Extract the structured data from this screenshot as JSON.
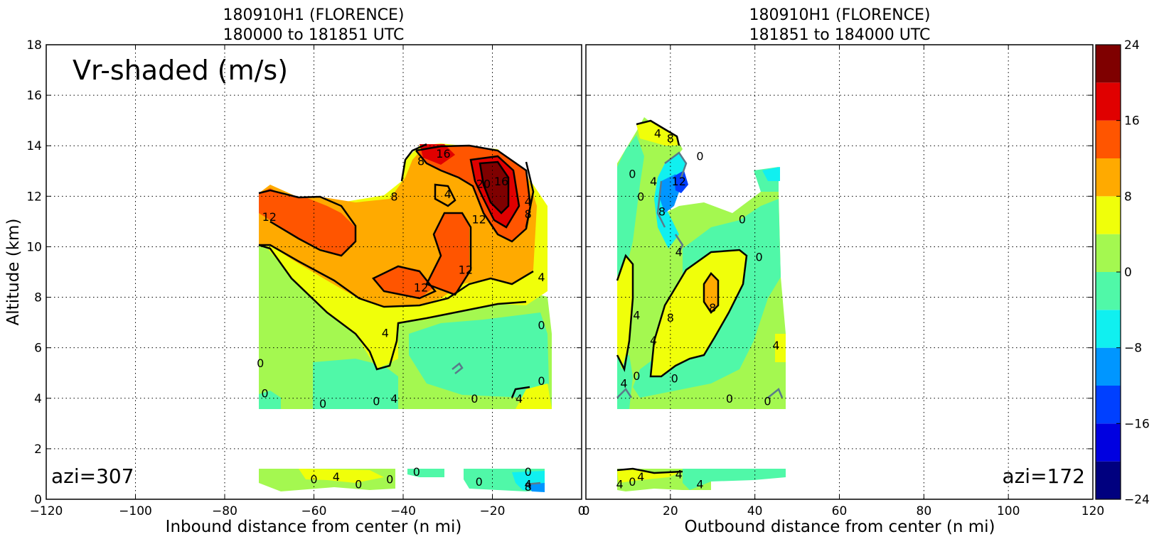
{
  "chart_data": [
    {
      "type": "heatmap",
      "panel": "left",
      "title_line1": "180910H1 (FLORENCE)",
      "title_line2": "180000 to 181851 UTC",
      "main_label": "Vr-shaded (m/s)",
      "azimuth_label": "azi=307",
      "xlabel": "Inbound distance from center (n mi)",
      "ylabel": "Altitude (km)",
      "xlim": [
        -120,
        0
      ],
      "ylim": [
        0,
        18
      ],
      "xticks": [
        "−120",
        "−100",
        "−80",
        "−60",
        "−40",
        "−20",
        "0"
      ],
      "yticks": [
        "0",
        "2",
        "4",
        "6",
        "8",
        "10",
        "12",
        "14",
        "16",
        "18"
      ],
      "grid": true,
      "contour_labels": [
        {
          "text": "12",
          "x": -70,
          "y": 11.2
        },
        {
          "text": "12",
          "x": -36,
          "y": 8.4
        },
        {
          "text": "12",
          "x": -26,
          "y": 9.1
        },
        {
          "text": "12",
          "x": -23,
          "y": 11.1
        },
        {
          "text": "16",
          "x": -31,
          "y": 13.7
        },
        {
          "text": "16",
          "x": -18,
          "y": 12.6
        },
        {
          "text": "20",
          "x": -22,
          "y": 12.5
        },
        {
          "text": "8",
          "x": -42,
          "y": 12.0
        },
        {
          "text": "8",
          "x": -36,
          "y": 13.4
        },
        {
          "text": "8",
          "x": -12,
          "y": 11.3
        },
        {
          "text": "4",
          "x": -30,
          "y": 12.1
        },
        {
          "text": "4",
          "x": -12,
          "y": 11.8
        },
        {
          "text": "4",
          "x": -9,
          "y": 8.8
        },
        {
          "text": "4",
          "x": -44,
          "y": 6.6
        },
        {
          "text": "4",
          "x": -42,
          "y": 4.0
        },
        {
          "text": "4",
          "x": -14,
          "y": 4.0
        },
        {
          "text": "4",
          "x": -55,
          "y": 0.9
        },
        {
          "text": "0",
          "x": -9,
          "y": 6.9
        },
        {
          "text": "0",
          "x": -9,
          "y": 4.7
        },
        {
          "text": "0",
          "x": -24,
          "y": 4.0
        },
        {
          "text": "0",
          "x": -46,
          "y": 3.9
        },
        {
          "text": "0",
          "x": -58,
          "y": 3.8
        },
        {
          "text": "0",
          "x": -72,
          "y": 5.4
        },
        {
          "text": "0",
          "x": -71,
          "y": 4.2
        },
        {
          "text": "0",
          "x": -60,
          "y": 0.8
        },
        {
          "text": "0",
          "x": -50,
          "y": 0.6
        },
        {
          "text": "0",
          "x": -43,
          "y": 0.8
        },
        {
          "text": "0",
          "x": -37,
          "y": 1.1
        },
        {
          "text": "0",
          "x": -23,
          "y": 0.7
        },
        {
          "text": "0",
          "x": -12,
          "y": 1.1
        },
        {
          "text": "8",
          "x": -12,
          "y": 0.5
        },
        {
          "text": "4",
          "x": -12,
          "y": 0.6
        }
      ]
    },
    {
      "type": "heatmap",
      "panel": "right",
      "title_line1": "180910H1 (FLORENCE)",
      "title_line2": "181851 to 184000 UTC",
      "azimuth_label": "azi=172",
      "xlabel": "Outbound distance from center (n mi)",
      "xlim": [
        0,
        120
      ],
      "ylim": [
        0,
        18
      ],
      "xticks": [
        "0",
        "20",
        "40",
        "60",
        "80",
        "100",
        "120"
      ],
      "grid": true,
      "contour_labels": [
        {
          "text": "4",
          "x": 17,
          "y": 14.5
        },
        {
          "text": "8",
          "x": 20,
          "y": 14.3
        },
        {
          "text": "0",
          "x": 27,
          "y": 13.6
        },
        {
          "text": "0",
          "x": 11,
          "y": 12.9
        },
        {
          "text": "4",
          "x": 16,
          "y": 12.6
        },
        {
          "text": "12",
          "x": 22,
          "y": 12.6
        },
        {
          "text": "0",
          "x": 13,
          "y": 12.0
        },
        {
          "text": "8",
          "x": 18,
          "y": 11.4
        },
        {
          "text": "0",
          "x": 37,
          "y": 11.1
        },
        {
          "text": "4",
          "x": 22,
          "y": 9.8
        },
        {
          "text": "0",
          "x": 41,
          "y": 9.6
        },
        {
          "text": "8",
          "x": 30,
          "y": 7.6
        },
        {
          "text": "4",
          "x": 12,
          "y": 7.3
        },
        {
          "text": "8",
          "x": 20,
          "y": 7.2
        },
        {
          "text": "4",
          "x": 16,
          "y": 6.3
        },
        {
          "text": "4",
          "x": 45,
          "y": 6.1
        },
        {
          "text": "0",
          "x": 21,
          "y": 4.8
        },
        {
          "text": "0",
          "x": 12,
          "y": 4.9
        },
        {
          "text": "4",
          "x": 9,
          "y": 4.6
        },
        {
          "text": "0",
          "x": 34,
          "y": 4.0
        },
        {
          "text": "0",
          "x": 43,
          "y": 3.9
        },
        {
          "text": "4",
          "x": 8,
          "y": 0.6
        },
        {
          "text": "0",
          "x": 11,
          "y": 0.7
        },
        {
          "text": "4",
          "x": 13,
          "y": 0.9
        },
        {
          "text": "4",
          "x": 22,
          "y": 1.0
        },
        {
          "text": "4",
          "x": 27,
          "y": 0.6
        }
      ]
    }
  ],
  "colorbar": {
    "label_ticks": [
      "−24",
      "−16",
      "−8",
      "0",
      "8",
      "16",
      "24"
    ],
    "min": -24,
    "max": 24,
    "colors": [
      "#00007f",
      "#0000e0",
      "#0040ff",
      "#0096ff",
      "#10f0f0",
      "#50f8a8",
      "#a4f850",
      "#f0ff0a",
      "#ffaa00",
      "#ff5500",
      "#e00000",
      "#7f0000"
    ]
  }
}
